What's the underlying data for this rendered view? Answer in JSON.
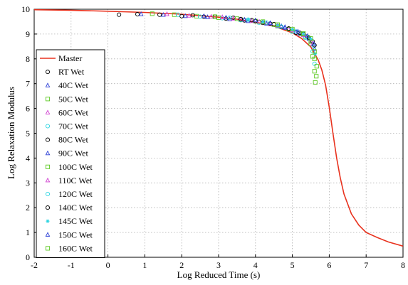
{
  "chart_data": {
    "type": "scatter",
    "title": "",
    "xlabel": "Log Reduced Time (s)",
    "ylabel": "Log Relaxation Modulus",
    "xlim": [
      -2,
      8
    ],
    "ylim": [
      0,
      10
    ],
    "xticks": [
      -2,
      -1,
      0,
      1,
      2,
      3,
      4,
      5,
      6,
      7,
      8
    ],
    "yticks": [
      0,
      1,
      2,
      3,
      4,
      5,
      6,
      7,
      8,
      9,
      10
    ],
    "grid": true,
    "legend_position": "left",
    "master_curve": {
      "name": "Master",
      "color": "#e8321e",
      "x": [
        -2,
        -1,
        0,
        1,
        2,
        3,
        3.5,
        4,
        4.5,
        5,
        5.25,
        5.5,
        5.7,
        5.8,
        5.9,
        6.0,
        6.1,
        6.2,
        6.3,
        6.4,
        6.6,
        6.8,
        7.0,
        7.3,
        7.6,
        8.0
      ],
      "y": [
        9.98,
        9.96,
        9.92,
        9.87,
        9.8,
        9.68,
        9.6,
        9.48,
        9.32,
        9.05,
        8.82,
        8.48,
        7.95,
        7.55,
        6.95,
        6.05,
        5.0,
        4.0,
        3.2,
        2.55,
        1.75,
        1.3,
        1.0,
        0.8,
        0.62,
        0.45
      ]
    },
    "series": [
      {
        "name": "RT Wet",
        "marker": "circle",
        "color": "#000000",
        "x": [
          0.3,
          0.8,
          1.4,
          2.0,
          2.6,
          3.2,
          3.7,
          4.2,
          4.7,
          5.1,
          5.4
        ],
        "y": [
          9.78,
          9.8,
          9.78,
          9.72,
          9.7,
          9.62,
          9.55,
          9.45,
          9.28,
          9.05,
          8.9
        ]
      },
      {
        "name": "40C Wet",
        "marker": "triangle",
        "color": "#2b3fd6",
        "x": [
          0.9,
          1.5,
          2.1,
          2.7,
          3.3,
          3.8,
          4.3,
          4.8,
          5.2,
          5.45
        ],
        "y": [
          9.8,
          9.77,
          9.72,
          9.68,
          9.6,
          9.52,
          9.42,
          9.25,
          9.0,
          8.8
        ]
      },
      {
        "name": "50C Wet",
        "marker": "square",
        "color": "#5ac81e",
        "x": [
          1.2,
          1.8,
          2.4,
          3.0,
          3.6,
          4.1,
          4.6,
          5.0,
          5.35,
          5.5,
          5.55,
          5.6,
          5.62
        ],
        "y": [
          9.82,
          9.78,
          9.72,
          9.66,
          9.58,
          9.48,
          9.32,
          9.12,
          8.9,
          8.6,
          8.1,
          7.5,
          7.05
        ]
      },
      {
        "name": "60C Wet",
        "marker": "triangle",
        "color": "#d040d0",
        "x": [
          1.6,
          2.2,
          2.8,
          3.4,
          3.9,
          4.4,
          4.9,
          5.3,
          5.5
        ],
        "y": [
          9.8,
          9.74,
          9.7,
          9.62,
          9.52,
          9.4,
          9.2,
          8.95,
          8.7
        ]
      },
      {
        "name": "70C Wet",
        "marker": "circle",
        "color": "#2ad4e0",
        "x": [
          1.9,
          2.5,
          3.1,
          3.6,
          4.1,
          4.6,
          5.0,
          5.35,
          5.55,
          5.6
        ],
        "y": [
          9.78,
          9.7,
          9.64,
          9.56,
          9.46,
          9.32,
          9.1,
          8.85,
          8.3,
          7.8
        ]
      },
      {
        "name": "80C Wet",
        "marker": "circle",
        "color": "#000000",
        "x": [
          2.3,
          2.9,
          3.4,
          3.9,
          4.4,
          4.9,
          5.3,
          5.55
        ],
        "y": [
          9.76,
          9.7,
          9.66,
          9.56,
          9.42,
          9.22,
          9.0,
          8.7
        ]
      },
      {
        "name": "90C Wet",
        "marker": "triangle",
        "color": "#2b3fd6",
        "x": [
          2.6,
          3.2,
          3.7,
          4.2,
          4.7,
          5.1,
          5.45,
          5.6
        ],
        "y": [
          9.72,
          9.66,
          9.58,
          9.48,
          9.32,
          9.1,
          8.85,
          8.4
        ]
      },
      {
        "name": "100C Wet",
        "marker": "square",
        "color": "#5ac81e",
        "x": [
          2.9,
          3.5,
          4.0,
          4.5,
          4.9,
          5.25,
          5.5,
          5.6,
          5.65
        ],
        "y": [
          9.7,
          9.62,
          9.52,
          9.38,
          9.2,
          9.0,
          8.7,
          8.0,
          7.3
        ]
      },
      {
        "name": "110C Wet",
        "marker": "triangle",
        "color": "#d040d0",
        "x": [
          3.1,
          3.6,
          4.1,
          4.6,
          5.0,
          5.35,
          5.55
        ],
        "y": [
          9.68,
          9.6,
          9.5,
          9.34,
          9.15,
          8.95,
          8.6
        ]
      },
      {
        "name": "120C Wet",
        "marker": "circle",
        "color": "#2ad4e0",
        "x": [
          3.3,
          3.8,
          4.3,
          4.7,
          5.1,
          5.4,
          5.58
        ],
        "y": [
          9.66,
          9.58,
          9.46,
          9.3,
          9.1,
          8.9,
          8.5
        ]
      },
      {
        "name": "140C Wet",
        "marker": "circle",
        "color": "#000000",
        "x": [
          3.6,
          4.0,
          4.5,
          4.9,
          5.2,
          5.45,
          5.6
        ],
        "y": [
          9.6,
          9.52,
          9.4,
          9.22,
          9.05,
          8.85,
          8.55
        ]
      },
      {
        "name": "145C Wet",
        "marker": "star",
        "color": "#2ad4e0",
        "x": [
          3.8,
          4.2,
          4.6,
          5.0,
          5.3,
          5.5,
          5.62
        ],
        "y": [
          9.58,
          9.48,
          9.34,
          9.18,
          9.0,
          8.8,
          8.2
        ]
      },
      {
        "name": "150C Wet",
        "marker": "triangle",
        "color": "#2b3fd6",
        "x": [
          4.0,
          4.4,
          4.8,
          5.15,
          5.4,
          5.58
        ],
        "y": [
          9.55,
          9.44,
          9.28,
          9.1,
          8.92,
          8.6
        ]
      },
      {
        "name": "160C Wet",
        "marker": "square",
        "color": "#5ac81e",
        "x": [
          4.2,
          4.6,
          5.0,
          5.3,
          5.5,
          5.6,
          5.66
        ],
        "y": [
          9.5,
          9.38,
          9.2,
          9.02,
          8.82,
          8.3,
          7.7
        ]
      }
    ]
  }
}
